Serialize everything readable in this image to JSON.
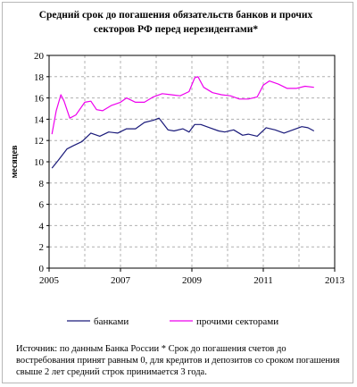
{
  "chart_data": {
    "type": "line",
    "title": "Средний срок до погашения обязательств банков и прочих секторов РФ перед нерезидентами*",
    "ylabel": "месяцев",
    "xlabel": "",
    "xlim": [
      2005,
      2013
    ],
    "ylim": [
      0,
      20
    ],
    "x_ticks": [
      "2005",
      "2007",
      "2009",
      "2011",
      "2013"
    ],
    "y_ticks": [
      "0",
      "2",
      "4",
      "6",
      "8",
      "10",
      "12",
      "14",
      "16",
      "18",
      "20"
    ],
    "grid": true,
    "legend_position": "bottom",
    "series": [
      {
        "name": "банками",
        "color": "#1a1a7a",
        "x": [
          2005.08,
          2005.25,
          2005.5,
          2005.67,
          2005.92,
          2006.17,
          2006.42,
          2006.67,
          2006.92,
          2007.17,
          2007.42,
          2007.67,
          2007.92,
          2008.08,
          2008.33,
          2008.5,
          2008.75,
          2008.92,
          2009.08,
          2009.25,
          2009.5,
          2009.75,
          2009.92,
          2010.17,
          2010.42,
          2010.58,
          2010.83,
          2011.08,
          2011.33,
          2011.58,
          2011.83,
          2012.08,
          2012.25,
          2012.42
        ],
        "y": [
          9.4,
          10.1,
          11.2,
          11.5,
          11.9,
          12.7,
          12.4,
          12.8,
          12.7,
          13.1,
          13.1,
          13.7,
          13.9,
          14.1,
          13.0,
          12.9,
          13.1,
          12.8,
          13.5,
          13.5,
          13.2,
          12.9,
          12.8,
          13.0,
          12.5,
          12.6,
          12.4,
          13.2,
          13.0,
          12.7,
          13.0,
          13.3,
          13.2,
          12.9
        ]
      },
      {
        "name": "прочими секторами",
        "color": "#ee00ee",
        "x": [
          2005.08,
          2005.2,
          2005.33,
          2005.42,
          2005.58,
          2005.75,
          2006.0,
          2006.17,
          2006.33,
          2006.5,
          2006.75,
          2007.0,
          2007.17,
          2007.42,
          2007.67,
          2007.92,
          2008.17,
          2008.42,
          2008.67,
          2008.92,
          2009.08,
          2009.17,
          2009.33,
          2009.58,
          2009.83,
          2010.08,
          2010.33,
          2010.58,
          2010.83,
          2011.0,
          2011.17,
          2011.42,
          2011.67,
          2011.92,
          2012.17,
          2012.42
        ],
        "y": [
          12.6,
          14.8,
          16.3,
          15.7,
          14.1,
          14.4,
          15.6,
          15.7,
          14.9,
          14.8,
          15.3,
          15.6,
          16.0,
          15.6,
          15.6,
          16.1,
          16.4,
          16.3,
          16.2,
          16.6,
          17.9,
          18.0,
          17.0,
          16.5,
          16.3,
          16.2,
          15.9,
          15.9,
          16.1,
          17.2,
          17.6,
          17.3,
          16.9,
          16.9,
          17.1,
          17.0
        ]
      }
    ]
  },
  "footnote": "Источник: по данным Банка России * Срок до погашения счетов до востребования принят равным 0, для кредитов и депозитов со сроком погашения свыше 2 лет средний строк принимается 3 года."
}
